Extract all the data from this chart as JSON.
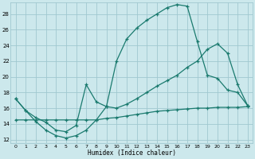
{
  "background_color": "#cce8ec",
  "grid_color": "#a0c8d0",
  "line_color": "#1a7a6e",
  "xlabel": "Humidex (Indice chaleur)",
  "xlim": [
    -0.5,
    23.5
  ],
  "ylim": [
    11.5,
    29.5
  ],
  "xticks": [
    0,
    1,
    2,
    3,
    4,
    5,
    6,
    7,
    8,
    9,
    10,
    11,
    12,
    13,
    14,
    15,
    16,
    17,
    18,
    19,
    20,
    21,
    22,
    23
  ],
  "yticks": [
    12,
    14,
    16,
    18,
    20,
    22,
    24,
    26,
    28
  ],
  "curve_top_x": [
    0,
    1,
    2,
    3,
    4,
    5,
    6,
    7,
    8,
    9,
    10,
    11,
    12,
    13,
    14,
    15,
    16,
    17,
    18,
    19,
    20,
    21,
    22,
    23
  ],
  "curve_top_y": [
    17.2,
    15.7,
    14.3,
    13.2,
    12.5,
    12.2,
    12.5,
    13.2,
    14.5,
    16.2,
    22.0,
    24.8,
    26.2,
    27.2,
    28.0,
    28.8,
    29.2,
    29.0,
    24.5,
    20.2,
    19.8,
    18.3,
    18.0,
    16.3
  ],
  "curve_mid_x": [
    0,
    1,
    2,
    3,
    4,
    5,
    6,
    7,
    8,
    9,
    10,
    11,
    12,
    13,
    14,
    15,
    16,
    17,
    18,
    19,
    20,
    21,
    22,
    23
  ],
  "curve_mid_y": [
    17.2,
    15.7,
    14.8,
    14.2,
    13.2,
    13.0,
    13.8,
    19.0,
    16.8,
    16.2,
    16.0,
    16.5,
    17.2,
    18.0,
    18.8,
    19.5,
    20.2,
    21.2,
    22.0,
    23.5,
    24.2,
    23.0,
    19.0,
    16.3
  ],
  "curve_bot_x": [
    0,
    1,
    2,
    3,
    4,
    5,
    6,
    7,
    8,
    9,
    10,
    11,
    12,
    13,
    14,
    15,
    16,
    17,
    18,
    19,
    20,
    21,
    22,
    23
  ],
  "curve_bot_y": [
    14.5,
    14.5,
    14.5,
    14.5,
    14.5,
    14.5,
    14.5,
    14.5,
    14.5,
    14.7,
    14.8,
    15.0,
    15.2,
    15.4,
    15.6,
    15.7,
    15.8,
    15.9,
    16.0,
    16.0,
    16.1,
    16.1,
    16.1,
    16.2
  ]
}
